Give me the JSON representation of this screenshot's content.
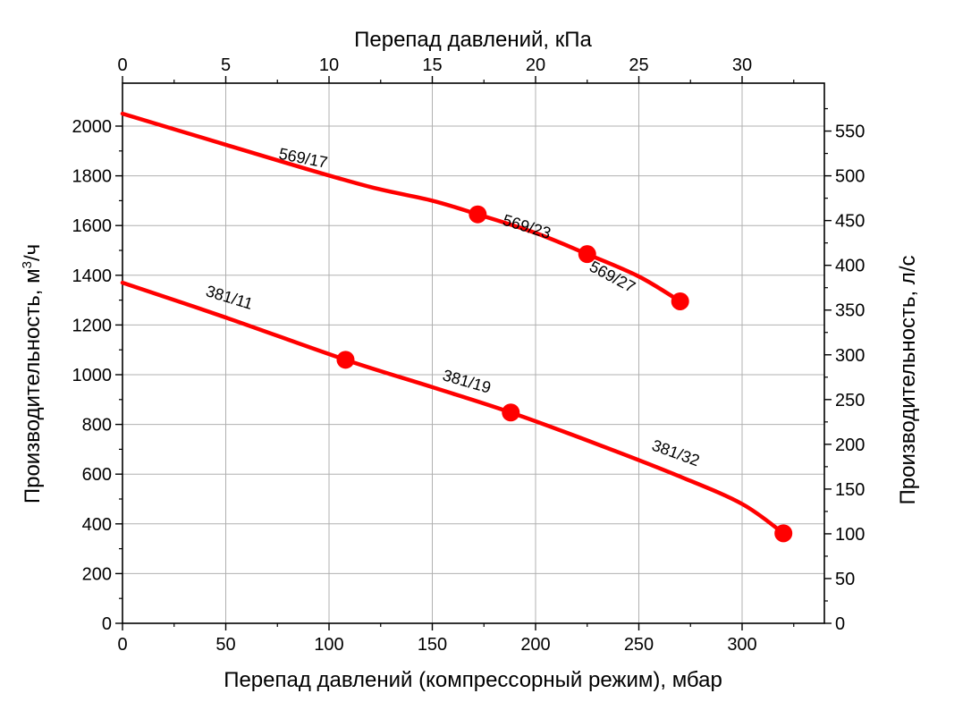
{
  "chart_data": {
    "type": "line",
    "title": "",
    "xlabel": "Перепад давлений (компрессорный режим), мбар",
    "xlabel_top": "Перепад давлений, кПа",
    "ylabel_left_text": "Производительность, м",
    "ylabel_left_sup": "3",
    "ylabel_left_tail": "/ч",
    "ylabel_right": "Производительность, л/с",
    "xlim": [
      0,
      343
    ],
    "ylim": [
      0,
      2100
    ],
    "x_top_lim_kpa": [
      0,
      34.3
    ],
    "y_right_lim_ls": [
      0,
      583.3
    ],
    "x_ticks": [
      0,
      50,
      100,
      150,
      200,
      250,
      300
    ],
    "x_ticks_top": [
      0,
      5,
      10,
      15,
      20,
      25,
      30
    ],
    "y_ticks": [
      0,
      200,
      400,
      600,
      800,
      1000,
      1200,
      1400,
      1600,
      1800,
      2000
    ],
    "y_ticks_right": [
      0,
      50,
      100,
      150,
      200,
      250,
      300,
      350,
      400,
      450,
      500,
      550
    ],
    "grid": true,
    "line_color": "#ff0000",
    "series": [
      {
        "points": [
          [
            0,
            2050
          ],
          [
            40,
            1950
          ],
          [
            80,
            1850
          ],
          [
            120,
            1755
          ],
          [
            150,
            1700
          ],
          [
            172,
            1645
          ],
          [
            200,
            1570
          ],
          [
            225,
            1485
          ],
          [
            250,
            1395
          ],
          [
            270,
            1295
          ]
        ],
        "markers": [
          [
            172,
            1645
          ],
          [
            225,
            1485
          ],
          [
            270,
            1295
          ]
        ],
        "labels": [
          {
            "text": "569/17",
            "x": 87,
            "y": 1850,
            "angle": 11
          },
          {
            "text": "569/23",
            "x": 195,
            "y": 1575,
            "angle": 17
          },
          {
            "text": "569/27",
            "x": 236,
            "y": 1375,
            "angle": 28
          }
        ]
      },
      {
        "points": [
          [
            0,
            1370
          ],
          [
            50,
            1230
          ],
          [
            108,
            1060
          ],
          [
            150,
            950
          ],
          [
            188,
            848
          ],
          [
            230,
            720
          ],
          [
            270,
            590
          ],
          [
            300,
            480
          ],
          [
            320,
            362
          ]
        ],
        "markers": [
          [
            108,
            1060
          ],
          [
            188,
            848
          ],
          [
            320,
            362
          ]
        ],
        "labels": [
          {
            "text": "381/11",
            "x": 51,
            "y": 1290,
            "angle": 17
          },
          {
            "text": "381/19",
            "x": 166,
            "y": 952,
            "angle": 16
          },
          {
            "text": "381/32",
            "x": 267,
            "y": 665,
            "angle": 20
          }
        ]
      }
    ]
  }
}
